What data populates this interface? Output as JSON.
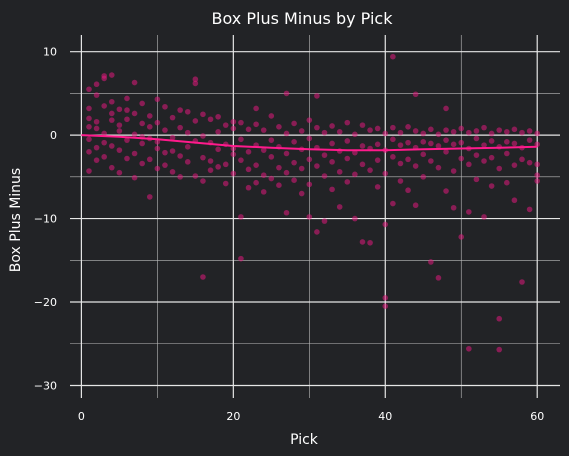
{
  "chart_data": {
    "type": "scatter",
    "title": "Box Plus Minus by Pick",
    "xlabel": "Pick",
    "ylabel": "Box Plus Minus",
    "xlim": [
      -1.5,
      63
    ],
    "ylim": [
      -31.5,
      12
    ],
    "x_ticks": [
      0,
      20,
      40,
      60
    ],
    "y_ticks": [
      10,
      0,
      -10,
      -20,
      -30
    ],
    "x_minor_ticks": [
      10,
      30,
      50
    ],
    "y_minor_ticks": [
      5,
      -5,
      -15,
      -25
    ],
    "grid": true,
    "colors": {
      "background": "#222326",
      "points": "#e0197c",
      "trend": "#ff1a8c"
    },
    "series": [
      {
        "points": [
          [
            1,
            5.5
          ],
          [
            1,
            3.2
          ],
          [
            1,
            1.0
          ],
          [
            1,
            -0.5
          ],
          [
            1,
            -2.0
          ],
          [
            1,
            -4.3
          ],
          [
            1,
            2.0
          ],
          [
            2,
            6.1
          ],
          [
            2,
            0.8
          ],
          [
            2,
            -1.5
          ],
          [
            2,
            -3.0
          ],
          [
            2,
            4.8
          ],
          [
            2,
            1.6
          ],
          [
            3,
            6.8
          ],
          [
            3,
            7.1
          ],
          [
            3,
            3.5
          ],
          [
            3,
            0.2
          ],
          [
            3,
            -2.6
          ],
          [
            3,
            -0.9
          ],
          [
            4,
            7.2
          ],
          [
            4,
            4.0
          ],
          [
            4,
            1.8
          ],
          [
            4,
            -1.3
          ],
          [
            4,
            -3.9
          ],
          [
            4,
            2.6
          ],
          [
            5,
            3.1
          ],
          [
            5,
            0.5
          ],
          [
            5,
            -1.8
          ],
          [
            5,
            -4.5
          ],
          [
            5,
            1.2
          ],
          [
            6,
            4.4
          ],
          [
            6,
            1.9
          ],
          [
            6,
            -0.6
          ],
          [
            6,
            -2.8
          ],
          [
            6,
            3.0
          ],
          [
            7,
            2.6
          ],
          [
            7,
            0.1
          ],
          [
            7,
            -2.2
          ],
          [
            7,
            -5.1
          ],
          [
            7,
            6.3
          ],
          [
            8,
            3.8
          ],
          [
            8,
            1.4
          ],
          [
            8,
            -1.0
          ],
          [
            8,
            -3.4
          ],
          [
            8,
            -0.2
          ],
          [
            9,
            2.3
          ],
          [
            9,
            -0.4
          ],
          [
            9,
            -2.9
          ],
          [
            9,
            -7.4
          ],
          [
            9,
            1.0
          ],
          [
            10,
            4.3
          ],
          [
            10,
            1.5
          ],
          [
            10,
            -1.6
          ],
          [
            10,
            -4.0
          ],
          [
            10,
            -0.8
          ],
          [
            11,
            3.4
          ],
          [
            11,
            0.6
          ],
          [
            11,
            -2.1
          ],
          [
            11,
            -3.6
          ],
          [
            12,
            2.1
          ],
          [
            12,
            -0.3
          ],
          [
            12,
            -1.9
          ],
          [
            12,
            -4.4
          ],
          [
            13,
            3.0
          ],
          [
            13,
            0.9
          ],
          [
            13,
            -2.5
          ],
          [
            13,
            -5.0
          ],
          [
            14,
            2.8
          ],
          [
            14,
            0.3
          ],
          [
            14,
            -1.4
          ],
          [
            14,
            -3.2
          ],
          [
            15,
            6.2
          ],
          [
            15,
            6.7
          ],
          [
            15,
            1.7
          ],
          [
            15,
            -0.7
          ],
          [
            15,
            -4.9
          ],
          [
            16,
            2.5
          ],
          [
            16,
            -0.1
          ],
          [
            16,
            -2.7
          ],
          [
            16,
            -5.5
          ],
          [
            16,
            -17.0
          ],
          [
            17,
            1.9
          ],
          [
            17,
            -0.9
          ],
          [
            17,
            -3.1
          ],
          [
            17,
            -4.2
          ],
          [
            18,
            2.2
          ],
          [
            18,
            0.4
          ],
          [
            18,
            -1.7
          ],
          [
            18,
            -3.8
          ],
          [
            19,
            1.2
          ],
          [
            19,
            -1.1
          ],
          [
            19,
            -3.5
          ],
          [
            19,
            -5.8
          ],
          [
            20,
            0.8
          ],
          [
            20,
            -1.6
          ],
          [
            20,
            -2.3
          ],
          [
            20,
            -4.6
          ],
          [
            20,
            1.6
          ],
          [
            21,
            1.5
          ],
          [
            21,
            -0.5
          ],
          [
            21,
            -3.0
          ],
          [
            21,
            -9.8
          ],
          [
            21,
            -14.8
          ],
          [
            22,
            0.7
          ],
          [
            22,
            -2.0
          ],
          [
            22,
            -4.1
          ],
          [
            22,
            -6.3
          ],
          [
            23,
            1.3
          ],
          [
            23,
            -1.2
          ],
          [
            23,
            -3.6
          ],
          [
            23,
            -5.7
          ],
          [
            23,
            3.2
          ],
          [
            24,
            0.6
          ],
          [
            24,
            -1.8
          ],
          [
            24,
            -4.8
          ],
          [
            24,
            -6.8
          ],
          [
            25,
            2.3
          ],
          [
            25,
            -0.6
          ],
          [
            25,
            -2.6
          ],
          [
            25,
            -5.2
          ],
          [
            26,
            1.0
          ],
          [
            26,
            -1.4
          ],
          [
            26,
            -3.9
          ],
          [
            26,
            -6.0
          ],
          [
            27,
            0.2
          ],
          [
            27,
            -2.2
          ],
          [
            27,
            -4.5
          ],
          [
            27,
            -9.3
          ],
          [
            27,
            5.0
          ],
          [
            28,
            1.4
          ],
          [
            28,
            -0.8
          ],
          [
            28,
            -3.3
          ],
          [
            28,
            -5.4
          ],
          [
            29,
            0.5
          ],
          [
            29,
            -1.7
          ],
          [
            29,
            -4.0
          ],
          [
            29,
            -7.0
          ],
          [
            30,
            1.8
          ],
          [
            30,
            -0.4
          ],
          [
            30,
            -2.9
          ],
          [
            30,
            -5.9
          ],
          [
            30,
            -9.8
          ],
          [
            31,
            0.9
          ],
          [
            31,
            -1.5
          ],
          [
            31,
            -3.7
          ],
          [
            31,
            -11.6
          ],
          [
            31,
            4.7
          ],
          [
            32,
            0.3
          ],
          [
            32,
            -2.4
          ],
          [
            32,
            -4.9
          ],
          [
            32,
            -10.3
          ],
          [
            33,
            1.1
          ],
          [
            33,
            -1.0
          ],
          [
            33,
            -3.2
          ],
          [
            33,
            -6.5
          ],
          [
            34,
            0.4
          ],
          [
            34,
            -1.9
          ],
          [
            34,
            -4.4
          ],
          [
            34,
            -8.6
          ],
          [
            35,
            1.5
          ],
          [
            35,
            -0.7
          ],
          [
            35,
            -2.8
          ],
          [
            35,
            -5.6
          ],
          [
            36,
            0.1
          ],
          [
            36,
            -2.1
          ],
          [
            36,
            -4.7
          ],
          [
            36,
            -10.0
          ],
          [
            37,
            1.2
          ],
          [
            37,
            -1.3
          ],
          [
            37,
            -3.5
          ],
          [
            37,
            -12.8
          ],
          [
            38,
            0.6
          ],
          [
            38,
            -1.6
          ],
          [
            38,
            -4.2
          ],
          [
            38,
            -12.9
          ],
          [
            39,
            0.8
          ],
          [
            39,
            -1.1
          ],
          [
            39,
            -3.0
          ],
          [
            39,
            -6.2
          ],
          [
            40,
            0.2
          ],
          [
            40,
            -1.8
          ],
          [
            40,
            -4.6
          ],
          [
            40,
            -10.7
          ],
          [
            40,
            -19.5
          ],
          [
            40,
            -20.5
          ],
          [
            41,
            0.9
          ],
          [
            41,
            -0.5
          ],
          [
            41,
            -2.6
          ],
          [
            41,
            -8.2
          ],
          [
            41,
            9.4
          ],
          [
            42,
            0.3
          ],
          [
            42,
            -1.2
          ],
          [
            42,
            -3.4
          ],
          [
            42,
            -5.5
          ],
          [
            43,
            1.0
          ],
          [
            43,
            -0.9
          ],
          [
            43,
            -2.9
          ],
          [
            43,
            -6.6
          ],
          [
            44,
            0.5
          ],
          [
            44,
            -1.5
          ],
          [
            44,
            -3.7
          ],
          [
            44,
            -8.4
          ],
          [
            44,
            4.9
          ],
          [
            45,
            0.2
          ],
          [
            45,
            -0.8
          ],
          [
            45,
            -2.3
          ],
          [
            45,
            -5.0
          ],
          [
            46,
            0.7
          ],
          [
            46,
            -1.0
          ],
          [
            46,
            -3.1
          ],
          [
            46,
            -15.2
          ],
          [
            47,
            0.1
          ],
          [
            47,
            -1.3
          ],
          [
            47,
            -3.9
          ],
          [
            47,
            -17.1
          ],
          [
            48,
            0.6
          ],
          [
            48,
            -0.6
          ],
          [
            48,
            -2.0
          ],
          [
            48,
            -6.7
          ],
          [
            48,
            3.2
          ],
          [
            49,
            0.4
          ],
          [
            49,
            -1.1
          ],
          [
            49,
            -4.3
          ],
          [
            49,
            -8.7
          ],
          [
            50,
            0.8
          ],
          [
            50,
            -0.9
          ],
          [
            50,
            -2.8
          ],
          [
            50,
            -12.2
          ],
          [
            51,
            0.3
          ],
          [
            51,
            -1.6
          ],
          [
            51,
            -3.5
          ],
          [
            51,
            -9.2
          ],
          [
            51,
            -25.6
          ],
          [
            52,
            0.5
          ],
          [
            52,
            -0.4
          ],
          [
            52,
            -2.4
          ],
          [
            52,
            -5.3
          ],
          [
            53,
            0.9
          ],
          [
            53,
            -1.2
          ],
          [
            53,
            -3.1
          ],
          [
            53,
            -9.8
          ],
          [
            54,
            0.2
          ],
          [
            54,
            -0.7
          ],
          [
            54,
            -2.7
          ],
          [
            54,
            -6.1
          ],
          [
            55,
            0.6
          ],
          [
            55,
            -1.4
          ],
          [
            55,
            -4.0
          ],
          [
            55,
            -25.7
          ],
          [
            55,
            -22.0
          ],
          [
            56,
            0.4
          ],
          [
            56,
            -0.8
          ],
          [
            56,
            -2.2
          ],
          [
            56,
            -5.7
          ],
          [
            57,
            0.7
          ],
          [
            57,
            -1.0
          ],
          [
            57,
            -3.6
          ],
          [
            57,
            -7.8
          ],
          [
            58,
            0.3
          ],
          [
            58,
            -1.5
          ],
          [
            58,
            -2.9
          ],
          [
            58,
            -17.6
          ],
          [
            59,
            0.5
          ],
          [
            59,
            -0.6
          ],
          [
            59,
            -3.3
          ],
          [
            59,
            -8.9
          ],
          [
            60,
            0.2
          ],
          [
            60,
            -1.1
          ],
          [
            60,
            -4.8
          ],
          [
            60,
            -5.5
          ],
          [
            60,
            -3.5
          ]
        ]
      }
    ],
    "trend": {
      "x": [
        0,
        5,
        10,
        15,
        20,
        25,
        30,
        35,
        40,
        45,
        50,
        55,
        60
      ],
      "y": [
        0.0,
        -0.2,
        -0.5,
        -0.9,
        -1.3,
        -1.5,
        -1.7,
        -1.8,
        -1.8,
        -1.7,
        -1.6,
        -1.5,
        -1.4
      ]
    }
  }
}
